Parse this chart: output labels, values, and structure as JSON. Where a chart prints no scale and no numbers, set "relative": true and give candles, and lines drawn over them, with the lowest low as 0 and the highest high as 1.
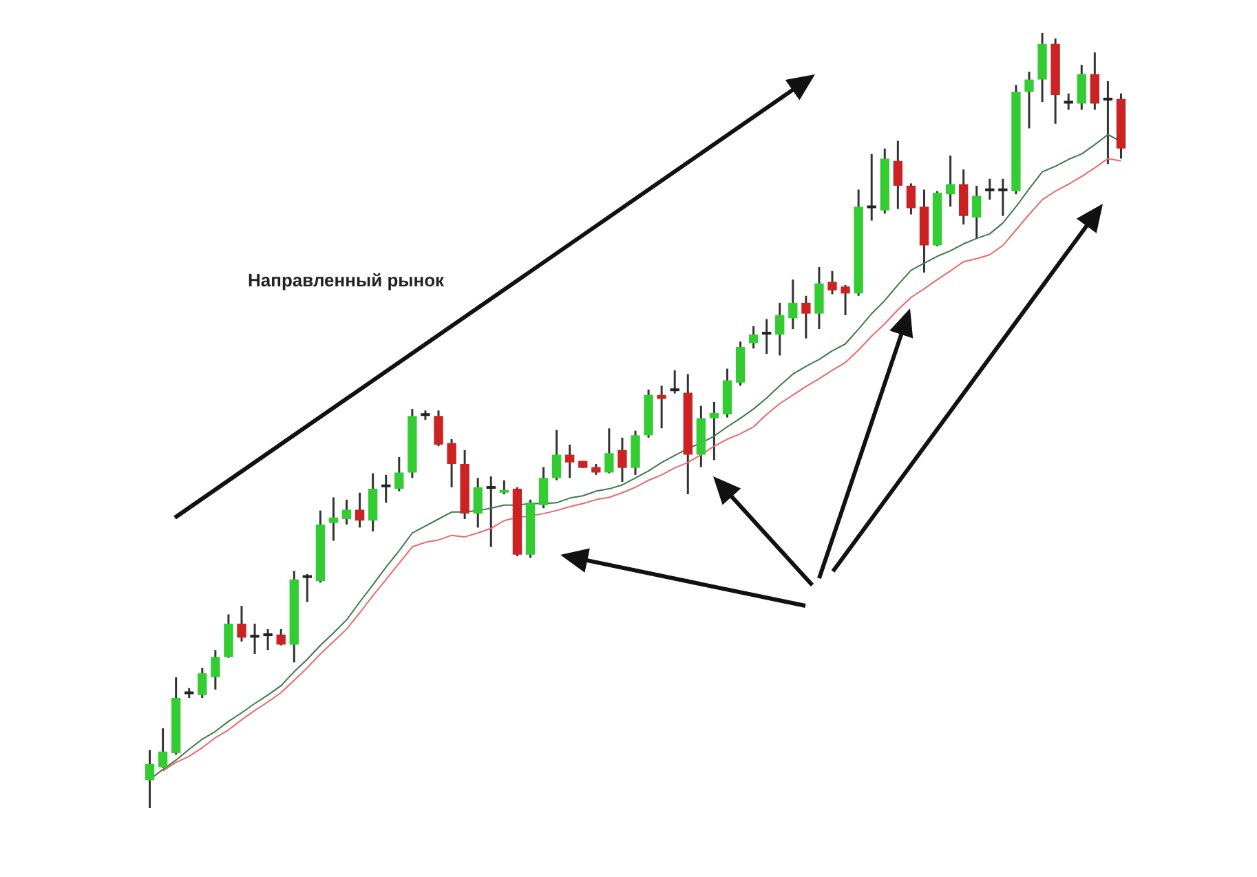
{
  "chart_data": {
    "type": "candlestick",
    "relative": true,
    "legend": false,
    "annotations": [
      "Направленный рынок"
    ],
    "categories": [
      null,
      null,
      null,
      null,
      null,
      null,
      null,
      null,
      null,
      null,
      null,
      null,
      null,
      null,
      null,
      null,
      null,
      null,
      null,
      null,
      null,
      null,
      null,
      null,
      null,
      null,
      null,
      null,
      null,
      null,
      null,
      null,
      null,
      null,
      null,
      null,
      null,
      null,
      null,
      null,
      null,
      null,
      null,
      null,
      null,
      null,
      null,
      null,
      null,
      null,
      null,
      null,
      null,
      null,
      null,
      null,
      null,
      null,
      null,
      null,
      null,
      null,
      null,
      null,
      null,
      null,
      null,
      null,
      null,
      null,
      null,
      null,
      null,
      null,
      null
    ],
    "ohlc": [
      [
        0.036,
        0.075,
        0,
        0.057
      ],
      [
        0.053,
        0.103,
        0.052,
        0.073
      ],
      [
        0.071,
        0.169,
        0.069,
        0.142
      ],
      [
        0.147,
        0.155,
        0.142,
        0.147
      ],
      [
        0.146,
        0.181,
        0.142,
        0.174
      ],
      [
        0.169,
        0.204,
        0.153,
        0.195
      ],
      [
        0.195,
        0.25,
        0.194,
        0.238
      ],
      [
        0.238,
        0.261,
        0.215,
        0.22
      ],
      [
        0.22,
        0.238,
        0.199,
        0.22
      ],
      [
        0.222,
        0.231,
        0.204,
        0.222
      ],
      [
        0.224,
        0.231,
        0.21,
        0.211
      ],
      [
        0.211,
        0.306,
        0.188,
        0.295
      ],
      [
        0.297,
        0.302,
        0.266,
        0.297
      ],
      [
        0.293,
        0.384,
        0.291,
        0.366
      ],
      [
        0.368,
        0.401,
        0.345,
        0.375
      ],
      [
        0.373,
        0.398,
        0.366,
        0.385
      ],
      [
        0.385,
        0.407,
        0.362,
        0.371
      ],
      [
        0.371,
        0.432,
        0.357,
        0.412
      ],
      [
        0.414,
        0.43,
        0.394,
        0.414
      ],
      [
        0.412,
        0.453,
        0.409,
        0.433
      ],
      [
        0.433,
        0.515,
        0.426,
        0.506
      ],
      [
        0.506,
        0.513,
        0.501,
        0.506
      ],
      [
        0.506,
        0.513,
        0.467,
        0.469
      ],
      [
        0.471,
        0.476,
        0.414,
        0.444
      ],
      [
        0.444,
        0.462,
        0.373,
        0.38
      ],
      [
        0.38,
        0.426,
        0.362,
        0.414
      ],
      [
        0.412,
        0.428,
        0.337,
        0.412
      ],
      [
        0.407,
        0.423,
        0.405,
        0.41
      ],
      [
        0.412,
        0.414,
        0.325,
        0.327
      ],
      [
        0.327,
        0.398,
        0.323,
        0.394
      ],
      [
        0.391,
        0.44,
        0.387,
        0.426
      ],
      [
        0.426,
        0.488,
        0.423,
        0.456
      ],
      [
        0.456,
        0.469,
        0.426,
        0.446
      ],
      [
        0.448,
        0.448,
        0.439,
        0.439
      ],
      [
        0.44,
        0.444,
        0.43,
        0.433
      ],
      [
        0.433,
        0.49,
        0.432,
        0.458
      ],
      [
        0.462,
        0.478,
        0.421,
        0.439
      ],
      [
        0.439,
        0.487,
        0.43,
        0.481
      ],
      [
        0.481,
        0.54,
        0.478,
        0.533
      ],
      [
        0.533,
        0.545,
        0.49,
        0.528
      ],
      [
        0.538,
        0.565,
        0.535,
        0.538
      ],
      [
        0.536,
        0.56,
        0.405,
        0.456
      ],
      [
        0.456,
        0.519,
        0.44,
        0.503
      ],
      [
        0.503,
        0.524,
        0.449,
        0.51
      ],
      [
        0.508,
        0.567,
        0.504,
        0.552
      ],
      [
        0.549,
        0.602,
        0.545,
        0.595
      ],
      [
        0.6,
        0.622,
        0.593,
        0.611
      ],
      [
        0.611,
        0.631,
        0.586,
        0.611
      ],
      [
        0.611,
        0.652,
        0.584,
        0.636
      ],
      [
        0.632,
        0.682,
        0.618,
        0.652
      ],
      [
        0.652,
        0.661,
        0.606,
        0.638
      ],
      [
        0.638,
        0.698,
        0.618,
        0.677
      ],
      [
        0.679,
        0.693,
        0.663,
        0.668
      ],
      [
        0.673,
        0.675,
        0.636,
        0.664
      ],
      [
        0.664,
        0.798,
        0.661,
        0.776
      ],
      [
        0.774,
        0.844,
        0.758,
        0.774
      ],
      [
        0.771,
        0.851,
        0.767,
        0.838
      ],
      [
        0.835,
        0.861,
        0.773,
        0.803
      ],
      [
        0.803,
        0.806,
        0.766,
        0.774
      ],
      [
        0.776,
        0.798,
        0.691,
        0.726
      ],
      [
        0.726,
        0.796,
        0.725,
        0.794
      ],
      [
        0.792,
        0.842,
        0.776,
        0.805
      ],
      [
        0.805,
        0.824,
        0.753,
        0.764
      ],
      [
        0.762,
        0.803,
        0.735,
        0.79
      ],
      [
        0.796,
        0.812,
        0.785,
        0.796
      ],
      [
        0.796,
        0.812,
        0.764,
        0.796
      ],
      [
        0.796,
        0.933,
        0.792,
        0.924
      ],
      [
        0.924,
        0.95,
        0.877,
        0.94
      ],
      [
        0.94,
        1,
        0.911,
        0.986
      ],
      [
        0.986,
        0.993,
        0.883,
        0.92
      ],
      [
        0.909,
        0.922,
        0.901,
        0.909
      ],
      [
        0.909,
        0.959,
        0.901,
        0.947
      ],
      [
        0.947,
        0.975,
        0.901,
        0.909
      ],
      [
        0.913,
        0.938,
        0.831,
        0.913
      ],
      [
        0.915,
        0.922,
        0.838,
        0.851
      ]
    ],
    "colors": [
      "#33cc33",
      "#33cc33",
      "#33cc33",
      "#222222",
      "#33cc33",
      "#33cc33",
      "#33cc33",
      "#cc2222",
      "#222222",
      "#222222",
      "#cc2222",
      "#33cc33",
      "#222222",
      "#33cc33",
      "#33cc33",
      "#33cc33",
      "#cc2222",
      "#33cc33",
      "#222222",
      "#33cc33",
      "#33cc33",
      "#222222",
      "#cc2222",
      "#cc2222",
      "#cc2222",
      "#33cc33",
      "#222222",
      "#33cc33",
      "#cc2222",
      "#33cc33",
      "#33cc33",
      "#33cc33",
      "#cc2222",
      "#cc2222",
      "#cc2222",
      "#33cc33",
      "#cc2222",
      "#33cc33",
      "#33cc33",
      "#cc2222",
      "#222222",
      "#cc2222",
      "#33cc33",
      "#33cc33",
      "#33cc33",
      "#33cc33",
      "#33cc33",
      "#222222",
      "#33cc33",
      "#33cc33",
      "#cc2222",
      "#33cc33",
      "#cc2222",
      "#cc2222",
      "#33cc33",
      "#222222",
      "#33cc33",
      "#cc2222",
      "#cc2222",
      "#cc2222",
      "#33cc33",
      "#33cc33",
      "#cc2222",
      "#33cc33",
      "#222222",
      "#222222",
      "#33cc33",
      "#33cc33",
      "#33cc33",
      "#cc2222",
      "#222222",
      "#33cc33",
      "#cc2222",
      "#222222",
      "#cc2222"
    ],
    "series": [
      {
        "type": "line",
        "color": "#3c7a46",
        "values": [
          0.037,
          0.05,
          0.062,
          0.076,
          0.089,
          0.099,
          0.112,
          0.123,
          0.135,
          0.146,
          0.158,
          0.176,
          0.192,
          0.21,
          0.226,
          0.243,
          0.266,
          0.288,
          0.311,
          0.332,
          0.355,
          0.364,
          0.373,
          0.382,
          0.382,
          0.384,
          0.387,
          0.391,
          0.391,
          0.393,
          0.393,
          0.394,
          0.4,
          0.403,
          0.409,
          0.412,
          0.417,
          0.426,
          0.435,
          0.446,
          0.455,
          0.464,
          0.471,
          0.48,
          0.492,
          0.503,
          0.515,
          0.529,
          0.545,
          0.56,
          0.57,
          0.579,
          0.59,
          0.599,
          0.618,
          0.638,
          0.655,
          0.675,
          0.694,
          0.703,
          0.712,
          0.719,
          0.728,
          0.735,
          0.741,
          0.755,
          0.776,
          0.799,
          0.821,
          0.828,
          0.837,
          0.844,
          0.856,
          0.869,
          0.86
        ]
      },
      {
        "type": "line",
        "color": "#e86a6a",
        "values": [
          null,
          0.048,
          0.059,
          0.067,
          0.078,
          0.091,
          0.101,
          0.114,
          0.126,
          0.137,
          0.149,
          0.165,
          0.181,
          0.199,
          0.215,
          0.231,
          0.252,
          0.274,
          0.295,
          0.316,
          0.337,
          0.343,
          0.346,
          0.352,
          0.35,
          0.355,
          0.361,
          0.371,
          0.375,
          0.377,
          0.38,
          0.384,
          0.389,
          0.393,
          0.398,
          0.401,
          0.407,
          0.414,
          0.423,
          0.43,
          0.439,
          0.446,
          0.456,
          0.467,
          0.476,
          0.483,
          0.492,
          0.508,
          0.522,
          0.533,
          0.544,
          0.554,
          0.565,
          0.575,
          0.591,
          0.609,
          0.625,
          0.643,
          0.659,
          0.67,
          0.682,
          0.693,
          0.705,
          0.709,
          0.714,
          0.726,
          0.746,
          0.766,
          0.785,
          0.796,
          0.805,
          0.815,
          0.826,
          0.838,
          0.835
        ]
      }
    ]
  }
}
